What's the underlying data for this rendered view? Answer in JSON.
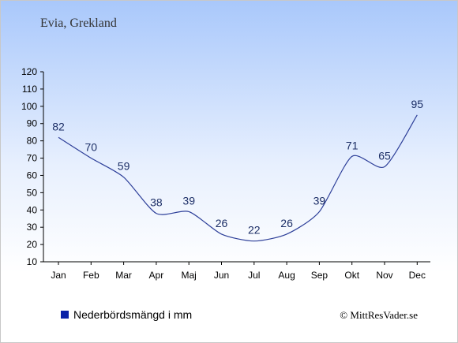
{
  "location_title": "Evia, Grekland",
  "copyright": "© MittResVader.se",
  "chart_data": {
    "type": "line",
    "categories": [
      "Jan",
      "Feb",
      "Mar",
      "Apr",
      "Maj",
      "Jun",
      "Jul",
      "Aug",
      "Sep",
      "Okt",
      "Nov",
      "Dec"
    ],
    "series": [
      {
        "name": "Nederbördsmängd i mm",
        "values": [
          82,
          70,
          59,
          38,
          39,
          26,
          22,
          26,
          39,
          71,
          65,
          95
        ],
        "color": "#2d3f99"
      }
    ],
    "ylim": [
      10,
      120
    ],
    "yticks": [
      10,
      20,
      30,
      40,
      50,
      60,
      70,
      80,
      90,
      100,
      110,
      120
    ],
    "legend_swatch_color": "#0b22a8",
    "legend_position": "bottom-left"
  }
}
